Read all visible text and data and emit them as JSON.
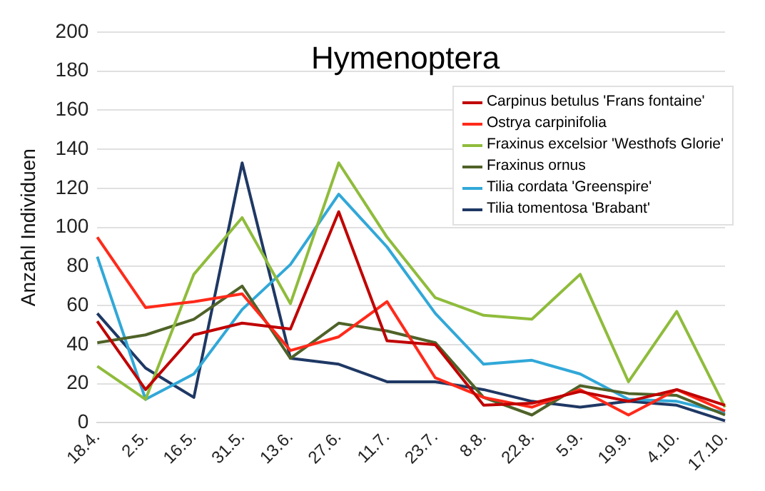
{
  "chart_data": {
    "type": "line",
    "title": "Hymenoptera",
    "ylabel": "Anzahl Individuen",
    "categories": [
      "18.4.",
      "2.5.",
      "16.5.",
      "31.5.",
      "13.6.",
      "27.6.",
      "11.7.",
      "23.7.",
      "8.8.",
      "22.8.",
      "5.9.",
      "19.9.",
      "4.10.",
      "17.10."
    ],
    "ylim": [
      0,
      200
    ],
    "yticks": [
      0,
      20,
      40,
      60,
      80,
      100,
      120,
      140,
      160,
      180,
      200
    ],
    "grid": "y",
    "legend": "top right",
    "marker": "none",
    "line_style": "solid",
    "series": [
      {
        "name": "Carpinus betulus 'Frans fontaine'",
        "color": "#c00000",
        "values": [
          52,
          17,
          45,
          51,
          48,
          108,
          42,
          40,
          9,
          10,
          16,
          11,
          17,
          9
        ]
      },
      {
        "name": "Ostrya carpinifolia",
        "color": "#ff2a1a",
        "values": [
          95,
          59,
          62,
          66,
          37,
          44,
          62,
          23,
          13,
          8,
          17,
          4,
          17,
          6
        ]
      },
      {
        "name": "Fraxinus excelsior 'Westhofs Glorie'",
        "color": "#8fbc3c",
        "values": [
          29,
          12,
          76,
          105,
          61,
          133,
          95,
          64,
          55,
          53,
          76,
          21,
          57,
          8
        ]
      },
      {
        "name": "Fraxinus ornus",
        "color": "#4f6228",
        "values": [
          41,
          45,
          53,
          70,
          33,
          51,
          47,
          41,
          13,
          4,
          19,
          15,
          14,
          4
        ]
      },
      {
        "name": "Tilia cordata 'Greenspire'",
        "color": "#31a8d8",
        "values": [
          85,
          12,
          25,
          58,
          81,
          117,
          90,
          56,
          30,
          32,
          25,
          12,
          11,
          5
        ]
      },
      {
        "name": "Tilia tomentosa 'Brabant'",
        "color": "#1f3864",
        "values": [
          56,
          28,
          13,
          133,
          33,
          30,
          21,
          21,
          17,
          11,
          8,
          11,
          9,
          1
        ]
      }
    ]
  }
}
